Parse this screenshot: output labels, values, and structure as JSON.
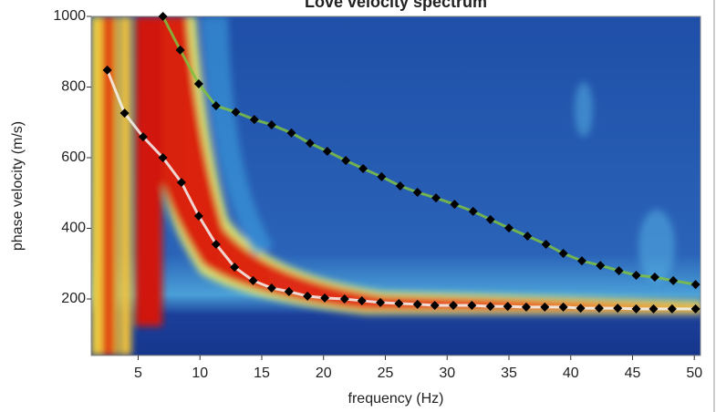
{
  "chart_data": {
    "type": "scatter",
    "title": "Love velocity spectrum",
    "x_label": "frequency (Hz)",
    "y_label": "phase velocity (m/s)",
    "xlim": [
      1.2,
      50.5
    ],
    "ylim": [
      40,
      1000
    ],
    "xticks": [
      5,
      10,
      15,
      20,
      25,
      30,
      35,
      40,
      45,
      50
    ],
    "yticks": [
      200,
      400,
      600,
      800,
      1000
    ],
    "series": [
      {
        "color": "#000000",
        "line_color": "#f4f4f4",
        "x": [
          2.5,
          3.9,
          5.4,
          7.0,
          8.5,
          9.9,
          11.3,
          12.8,
          14.3,
          15.8,
          17.2,
          18.7,
          20.1,
          21.7,
          23.1,
          24.6,
          26.1,
          27.6,
          29.0,
          30.5,
          32.0,
          33.5,
          34.9,
          36.4,
          37.9,
          39.4,
          40.8,
          42.3,
          43.8,
          45.3,
          46.7,
          48.2,
          50.1
        ],
        "values": [
          848,
          726,
          659,
          600,
          530,
          435,
          355,
          290,
          252,
          231,
          221,
          208,
          203,
          200,
          195,
          190,
          187,
          185,
          182,
          182,
          182,
          179,
          179,
          177,
          177,
          177,
          174,
          174,
          174,
          172,
          172,
          172,
          172
        ]
      },
      {
        "color": "#000000",
        "line_color": "#7fbf3f",
        "x": [
          7.0,
          8.4,
          9.9,
          11.3,
          12.9,
          14.4,
          15.8,
          17.4,
          18.9,
          20.3,
          21.8,
          23.2,
          24.7,
          26.2,
          27.6,
          29.1,
          30.6,
          32.1,
          33.5,
          35.0,
          36.5,
          38.0,
          39.4,
          40.9,
          42.4,
          43.9,
          45.3,
          46.8,
          48.3,
          50.1
        ],
        "values": [
          1000,
          905,
          809,
          747,
          729,
          708,
          693,
          670,
          641,
          618,
          592,
          569,
          546,
          520,
          502,
          486,
          468,
          448,
          425,
          401,
          378,
          355,
          329,
          308,
          295,
          280,
          267,
          262,
          252,
          241
        ]
      }
    ]
  }
}
